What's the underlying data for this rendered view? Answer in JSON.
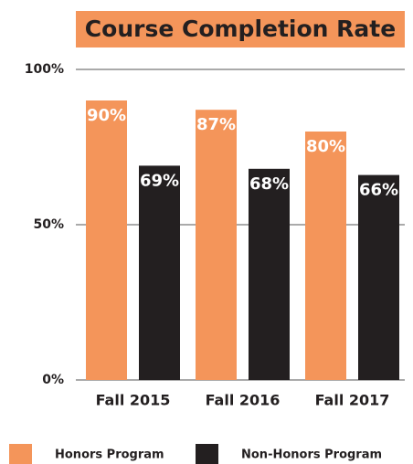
{
  "chart_data": {
    "type": "bar",
    "title": "Course Completion Rate",
    "categories": [
      "Fall 2015",
      "Fall 2016",
      "Fall 2017"
    ],
    "series": [
      {
        "name": "Honors Program",
        "color": "#f4955a",
        "values": [
          90,
          87,
          80
        ],
        "value_labels": [
          "90%",
          "87%",
          "80%"
        ]
      },
      {
        "name": "Non-Honors Program",
        "color": "#231f20",
        "values": [
          69,
          68,
          66
        ],
        "value_labels": [
          "69%",
          "68%",
          "66%"
        ]
      }
    ],
    "ylim": [
      0,
      100
    ],
    "yticks": [
      {
        "value": 0,
        "label": "0%"
      },
      {
        "value": 50,
        "label": "50%"
      },
      {
        "value": 100,
        "label": "100%"
      }
    ],
    "grid": true
  }
}
